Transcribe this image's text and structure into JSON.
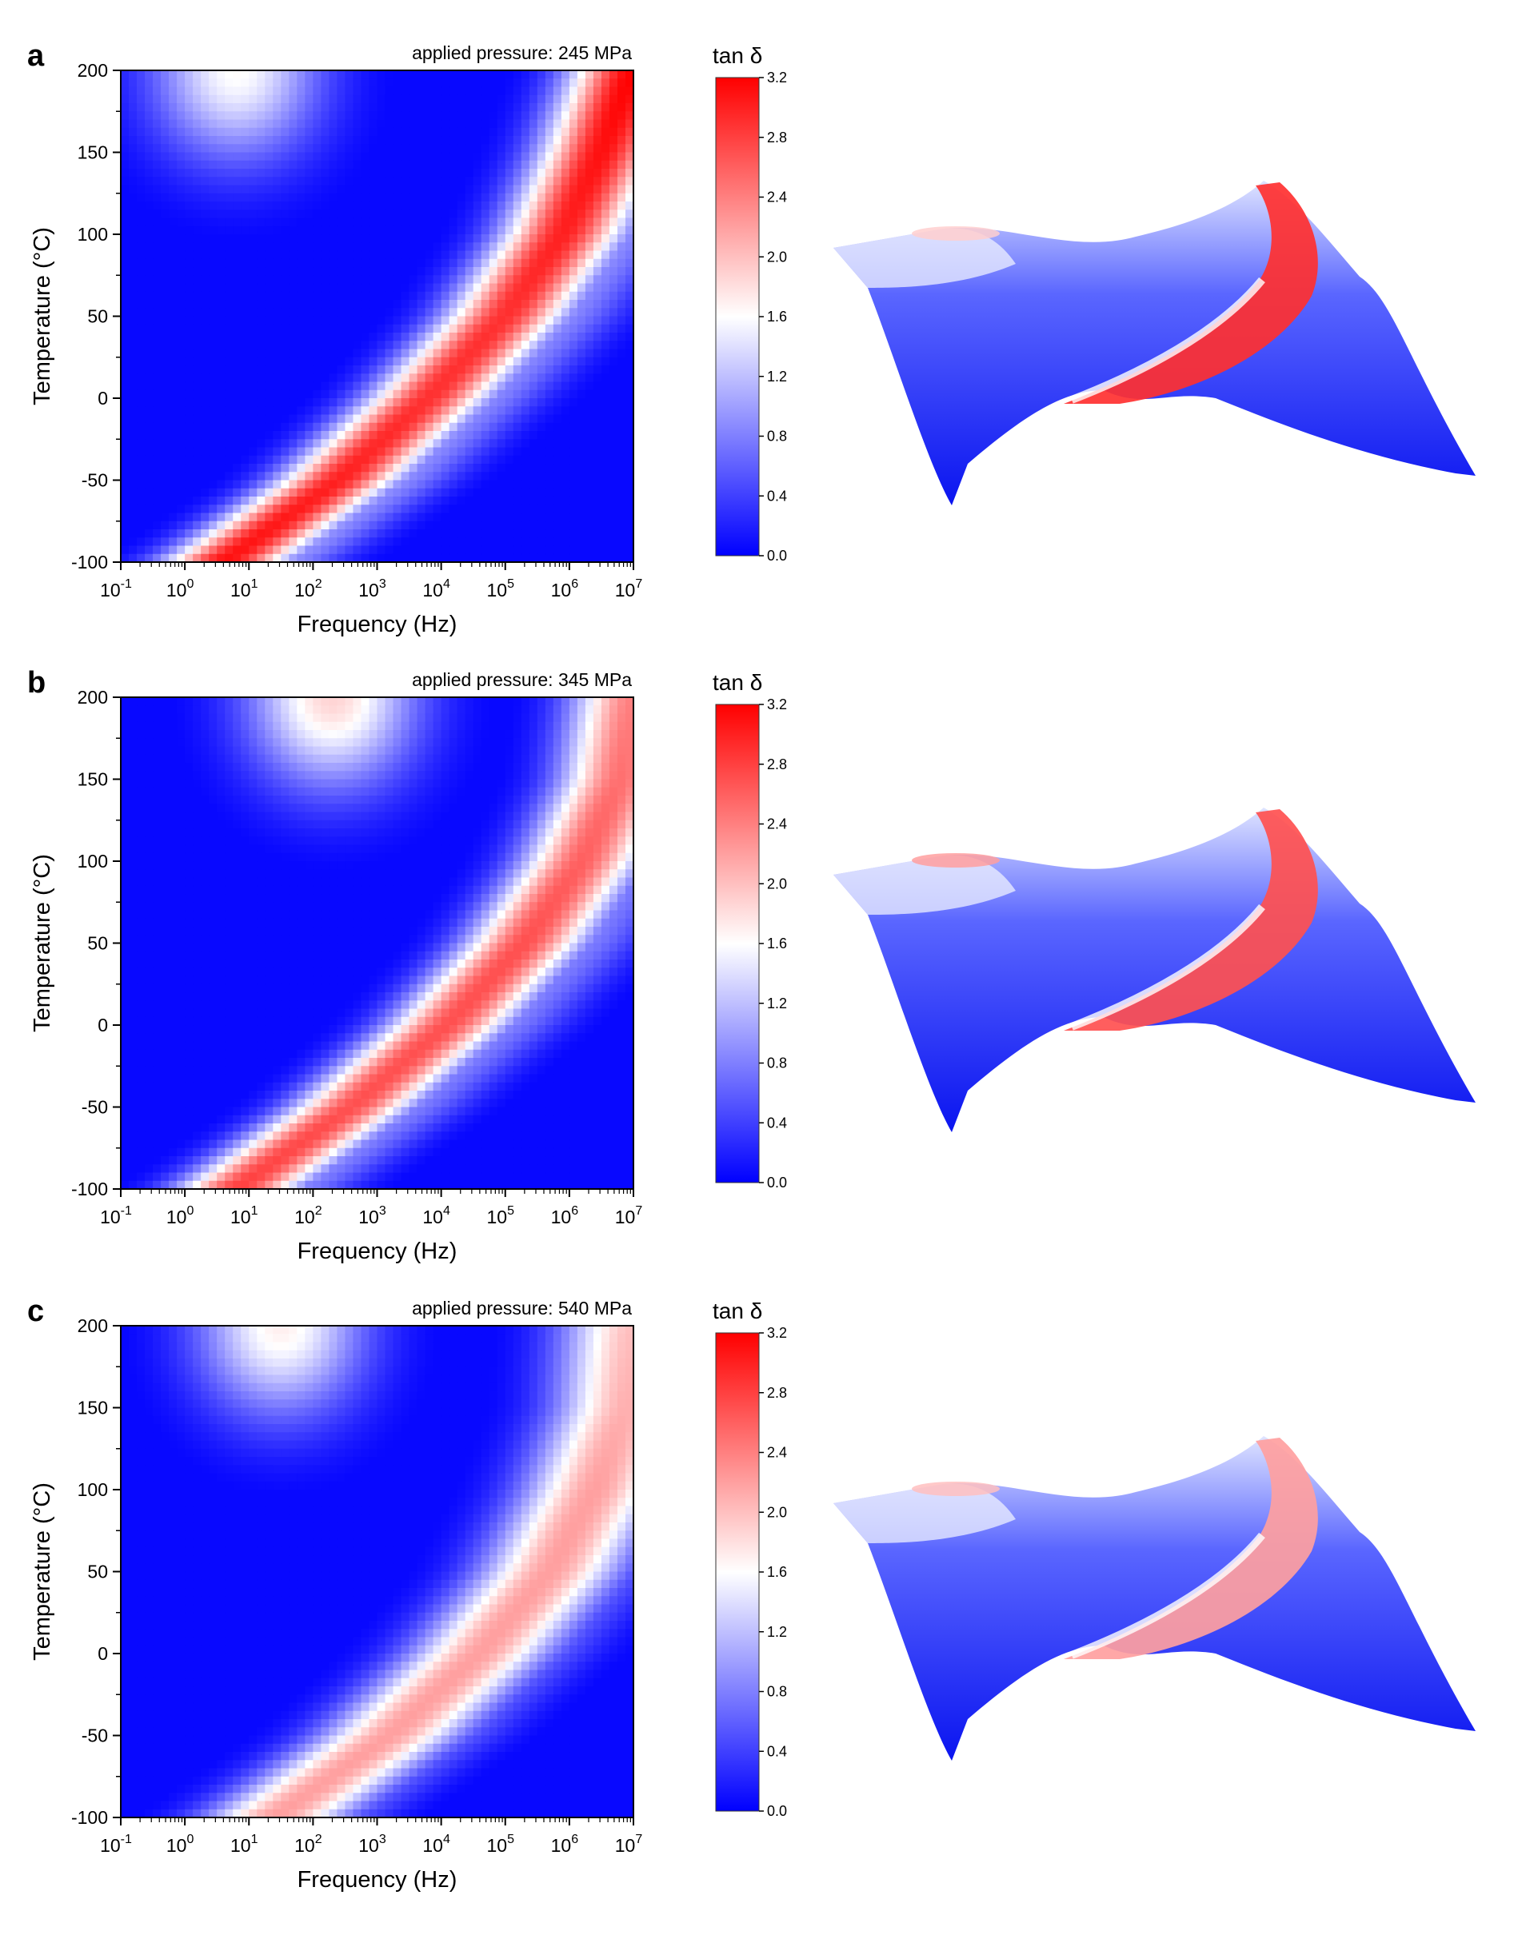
{
  "colors": {
    "low": "#0000ff",
    "mid": "#ffffff",
    "high": "#ff0000",
    "axis": "#000000"
  },
  "chart_data": [
    {
      "panel": "a",
      "type": "heatmap",
      "annotation": "applied pressure: 245 MPa",
      "xlabel": "Frequency (Hz)",
      "ylabel": "Temperature (°C)",
      "x_scale": "log",
      "xlim": [
        0.1,
        10000000
      ],
      "ylim": [
        -100,
        200
      ],
      "x_ticks": [
        {
          "base": "10",
          "exp": "-1"
        },
        {
          "base": "10",
          "exp": "0"
        },
        {
          "base": "10",
          "exp": "1"
        },
        {
          "base": "10",
          "exp": "2"
        },
        {
          "base": "10",
          "exp": "3"
        },
        {
          "base": "10",
          "exp": "4"
        },
        {
          "base": "10",
          "exp": "5"
        },
        {
          "base": "10",
          "exp": "6"
        },
        {
          "base": "10",
          "exp": "7"
        }
      ],
      "y_ticks": [
        "200",
        "150",
        "100",
        "50",
        "0",
        "-50",
        "-100"
      ],
      "colorbar": {
        "label": "tan δ",
        "range": [
          0,
          3.2
        ],
        "ticks": [
          "3.2",
          "2.8",
          "2.4",
          "2.0",
          "1.6",
          "1.2",
          "0.8",
          "0.4",
          "0.0"
        ]
      },
      "peak_ridge": {
        "temperature": [
          -100,
          -50,
          0,
          50,
          100,
          150,
          200
        ],
        "log10_frequency": [
          0.6,
          2.4,
          3.8,
          5.0,
          5.9,
          6.5,
          7.0
        ],
        "peak_tan_delta": [
          3.1,
          3.0,
          2.9,
          2.9,
          3.0,
          3.1,
          3.2
        ]
      },
      "corner_peak": {
        "temperature": 200,
        "log10_frequency": 0.8,
        "tan_delta": 1.9
      }
    },
    {
      "panel": "b",
      "type": "heatmap",
      "annotation": "applied pressure: 345 MPa",
      "xlabel": "Frequency (Hz)",
      "ylabel": "Temperature (°C)",
      "x_scale": "log",
      "xlim": [
        0.1,
        10000000
      ],
      "ylim": [
        -100,
        200
      ],
      "x_ticks": [
        {
          "base": "10",
          "exp": "-1"
        },
        {
          "base": "10",
          "exp": "0"
        },
        {
          "base": "10",
          "exp": "1"
        },
        {
          "base": "10",
          "exp": "2"
        },
        {
          "base": "10",
          "exp": "3"
        },
        {
          "base": "10",
          "exp": "4"
        },
        {
          "base": "10",
          "exp": "5"
        },
        {
          "base": "10",
          "exp": "6"
        },
        {
          "base": "10",
          "exp": "7"
        }
      ],
      "y_ticks": [
        "200",
        "150",
        "100",
        "50",
        "0",
        "-50",
        "-100"
      ],
      "colorbar": {
        "label": "tan δ",
        "range": [
          0,
          3.2
        ],
        "ticks": [
          "3.2",
          "2.8",
          "2.4",
          "2.0",
          "1.6",
          "1.2",
          "0.8",
          "0.4",
          "0.0"
        ]
      },
      "peak_ridge": {
        "temperature": [
          -100,
          -50,
          0,
          50,
          100,
          150,
          200
        ],
        "log10_frequency": [
          0.8,
          2.6,
          4.1,
          5.3,
          6.2,
          6.8,
          7.0
        ],
        "peak_tan_delta": [
          2.8,
          2.7,
          2.7,
          2.7,
          2.6,
          2.5,
          2.4
        ]
      },
      "corner_peak": {
        "temperature": 200,
        "log10_frequency": 2.3,
        "tan_delta": 2.2
      }
    },
    {
      "panel": "c",
      "type": "heatmap",
      "annotation": "applied pressure: 540 MPa",
      "xlabel": "Frequency (Hz)",
      "ylabel": "Temperature (°C)",
      "x_scale": "log",
      "xlim": [
        0.1,
        10000000
      ],
      "ylim": [
        -100,
        200
      ],
      "x_ticks": [
        {
          "base": "10",
          "exp": "-1"
        },
        {
          "base": "10",
          "exp": "0"
        },
        {
          "base": "10",
          "exp": "1"
        },
        {
          "base": "10",
          "exp": "2"
        },
        {
          "base": "10",
          "exp": "3"
        },
        {
          "base": "10",
          "exp": "4"
        },
        {
          "base": "10",
          "exp": "5"
        },
        {
          "base": "10",
          "exp": "6"
        },
        {
          "base": "10",
          "exp": "7"
        }
      ],
      "y_ticks": [
        "200",
        "150",
        "100",
        "50",
        "0",
        "-50",
        "-100"
      ],
      "colorbar": {
        "label": "tan δ",
        "range": [
          0,
          3.2
        ],
        "ticks": [
          "3.2",
          "2.8",
          "2.4",
          "2.0",
          "1.6",
          "1.2",
          "0.8",
          "0.4",
          "0.0"
        ]
      },
      "peak_ridge": {
        "temperature": [
          -100,
          -50,
          0,
          50,
          100,
          150,
          200
        ],
        "log10_frequency": [
          1.4,
          3.2,
          4.6,
          5.7,
          6.4,
          6.9,
          7.0
        ],
        "peak_tan_delta": [
          2.2,
          2.2,
          2.2,
          2.2,
          2.2,
          2.1,
          2.0
        ]
      },
      "corner_peak": {
        "temperature": 200,
        "log10_frequency": 1.5,
        "tan_delta": 2.0
      }
    }
  ]
}
